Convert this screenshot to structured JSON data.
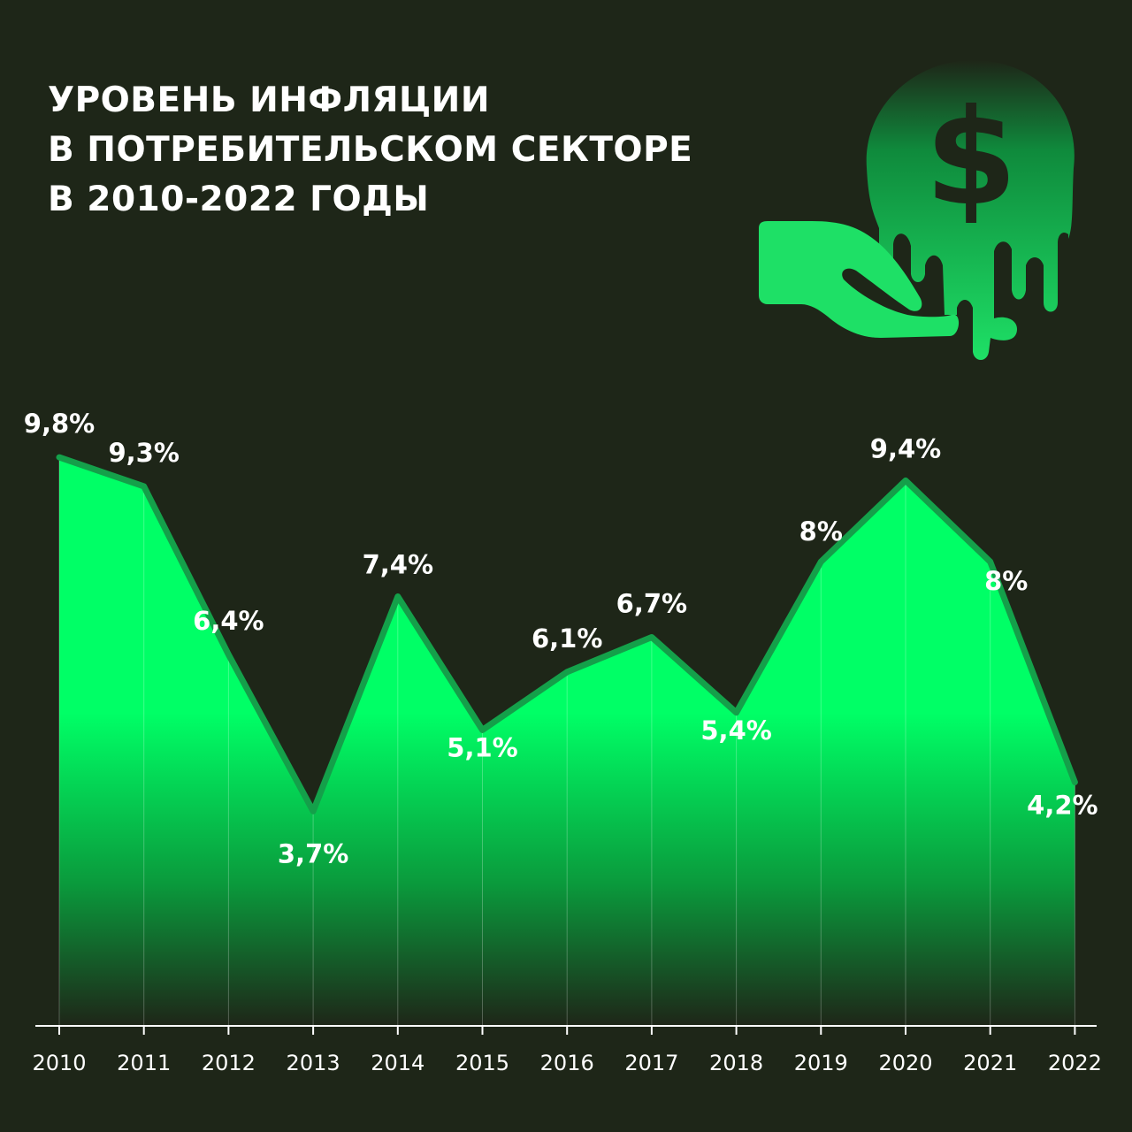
{
  "title_lines": [
    "УРОВЕНЬ ИНФЛЯЦИИ",
    "В ПОТРЕБИТЕЛЬСКОМ СЕКТОРЕ",
    "В 2010-2022 ГОДЫ"
  ],
  "icons": {
    "illustration": "hand-with-melting-dollar-coin-icon"
  },
  "colors": {
    "background": "#1e2618",
    "area_top": "#00ff66",
    "area_bottom": "#1e2618",
    "line": "#14a04a",
    "label": "#ffffff",
    "axis": "#ffffff"
  },
  "chart_data": {
    "type": "area",
    "title": "УРОВЕНЬ ИНФЛЯЦИИ В ПОТРЕБИТЕЛЬСКОМ СЕКТОРЕ В 2010-2022 ГОДЫ",
    "xlabel": "",
    "ylabel": "",
    "categories": [
      "2010",
      "2011",
      "2012",
      "2013",
      "2014",
      "2015",
      "2016",
      "2017",
      "2018",
      "2019",
      "2020",
      "2021",
      "2022"
    ],
    "values": [
      9.8,
      9.3,
      6.4,
      3.7,
      7.4,
      5.1,
      6.1,
      6.7,
      5.4,
      8.0,
      9.4,
      8.0,
      4.2
    ],
    "labels": [
      "9,8%",
      "9,3%",
      "6,4%",
      "3,7%",
      "7,4%",
      "5,1%",
      "6,1%",
      "6,7%",
      "5,4%",
      "8%",
      "9,4%",
      "8%",
      "4,2%"
    ],
    "ylim": [
      0,
      10
    ],
    "grid": "vertical",
    "legend": "none"
  }
}
